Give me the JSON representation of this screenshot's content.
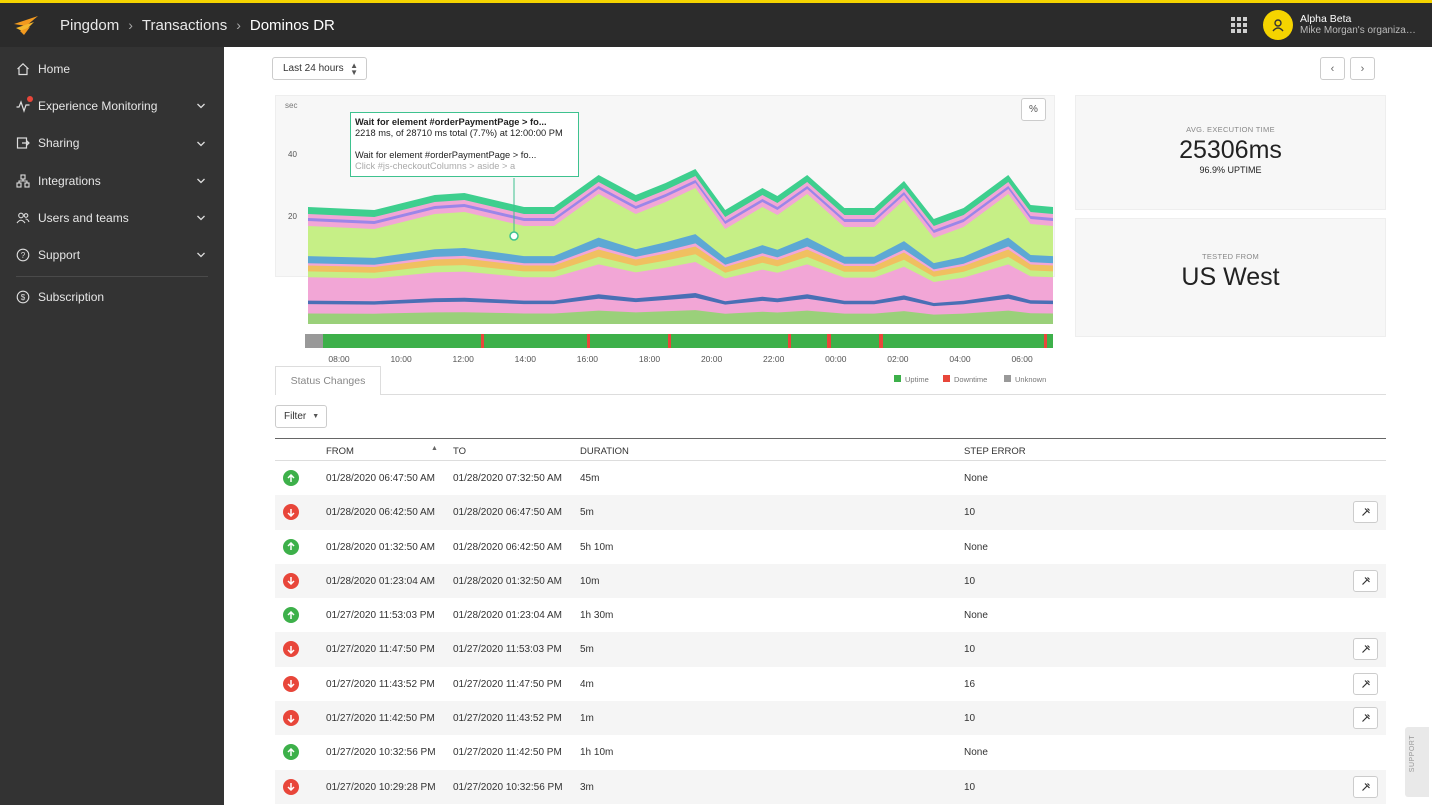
{
  "header": {
    "breadcrumbs": [
      "Pingdom",
      "Transactions",
      "Dominos DR"
    ],
    "user": {
      "name": "Alpha Beta",
      "org": "Mike Morgan's organizatio..."
    }
  },
  "sidebar": {
    "items": [
      {
        "label": "Home",
        "icon": "home-icon"
      },
      {
        "label": "Experience Monitoring",
        "icon": "pulse-icon"
      },
      {
        "label": "Sharing",
        "icon": "share-icon"
      },
      {
        "label": "Integrations",
        "icon": "integrations-icon"
      },
      {
        "label": "Users and teams",
        "icon": "users-icon"
      },
      {
        "label": "Support",
        "icon": "help-icon"
      },
      {
        "label": "Subscription",
        "icon": "dollar-icon"
      }
    ]
  },
  "toolbar": {
    "range_label": "Last 24 hours",
    "pct_label": "%"
  },
  "chart": {
    "y_unit": "sec",
    "y_ticks": [
      "40",
      "20"
    ],
    "x_ticks": [
      "08:00",
      "10:00",
      "12:00",
      "14:00",
      "16:00",
      "18:00",
      "20:00",
      "22:00",
      "00:00",
      "02:00",
      "04:00",
      "06:00"
    ],
    "legend": [
      "Uptime",
      "Downtime",
      "Unknown"
    ],
    "colors": {
      "uptime": "#3db04a",
      "downtime": "#e8463a",
      "unknown": "#999999"
    },
    "tooltip": {
      "title": "Wait for element #orderPaymentPage > fo...",
      "line1": "2218 ms, of 28710 ms total (7.7%) at 12:00:00 PM",
      "line2": "Wait for element #orderPaymentPage > fo...",
      "line3": "Click #js-checkoutColumns > aside > a"
    }
  },
  "stats": {
    "avg_label": "AVG. EXECUTION TIME",
    "avg_value": "25306ms",
    "uptime": "96.9% UPTIME",
    "from_label": "TESTED FROM",
    "from_value": "US West"
  },
  "status_changes": {
    "tab_label": "Status Changes",
    "filter_label": "Filter",
    "columns": [
      "FROM",
      "TO",
      "DURATION",
      "STEP ERROR"
    ],
    "rows": [
      {
        "status": "up",
        "from": "01/28/2020 06:47:50 AM",
        "to": "01/28/2020 07:32:50 AM",
        "duration": "45m",
        "error": "None"
      },
      {
        "status": "down",
        "from": "01/28/2020 06:42:50 AM",
        "to": "01/28/2020 06:47:50 AM",
        "duration": "5m",
        "error": "10"
      },
      {
        "status": "up",
        "from": "01/28/2020 01:32:50 AM",
        "to": "01/28/2020 06:42:50 AM",
        "duration": "5h 10m",
        "error": "None"
      },
      {
        "status": "down",
        "from": "01/28/2020 01:23:04 AM",
        "to": "01/28/2020 01:32:50 AM",
        "duration": "10m",
        "error": "10"
      },
      {
        "status": "up",
        "from": "01/27/2020 11:53:03 PM",
        "to": "01/28/2020 01:23:04 AM",
        "duration": "1h 30m",
        "error": "None"
      },
      {
        "status": "down",
        "from": "01/27/2020 11:47:50 PM",
        "to": "01/27/2020 11:53:03 PM",
        "duration": "5m",
        "error": "10"
      },
      {
        "status": "down",
        "from": "01/27/2020 11:43:52 PM",
        "to": "01/27/2020 11:47:50 PM",
        "duration": "4m",
        "error": "16"
      },
      {
        "status": "down",
        "from": "01/27/2020 11:42:50 PM",
        "to": "01/27/2020 11:43:52 PM",
        "duration": "1m",
        "error": "10"
      },
      {
        "status": "up",
        "from": "01/27/2020 10:32:56 PM",
        "to": "01/27/2020 11:42:50 PM",
        "duration": "1h 10m",
        "error": "None"
      },
      {
        "status": "down",
        "from": "01/27/2020 10:29:28 PM",
        "to": "01/27/2020 10:32:56 PM",
        "duration": "3m",
        "error": "10"
      }
    ]
  },
  "support_tab": "SUPPORT"
}
